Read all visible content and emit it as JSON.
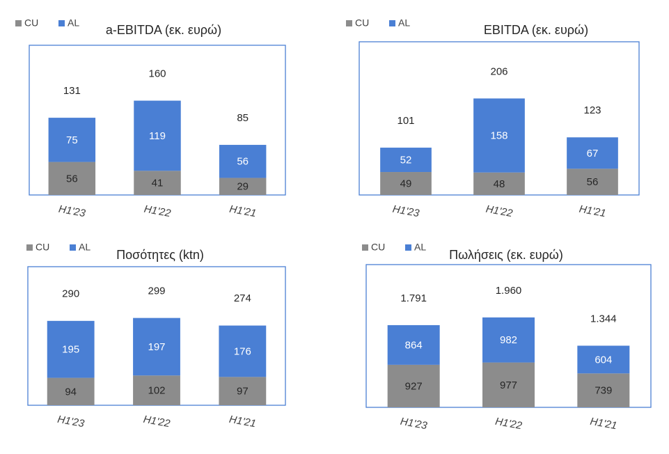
{
  "chart_data": [
    {
      "type": "bar",
      "title": "a-EBITDA (εκ. ευρώ)",
      "categories": [
        "H1'23",
        "H1'22",
        "H1'21"
      ],
      "series": [
        {
          "name": "CU",
          "color": "#8c8c8c",
          "values": [
            56,
            41,
            29
          ]
        },
        {
          "name": "AL",
          "color": "#4a7fd4",
          "values": [
            75,
            119,
            56
          ]
        }
      ],
      "totals": [
        131,
        160,
        85
      ]
    },
    {
      "type": "bar",
      "title": "EBITDA (εκ. ευρώ)",
      "categories": [
        "H1'23",
        "H1'22",
        "H1'21"
      ],
      "series": [
        {
          "name": "CU",
          "color": "#8c8c8c",
          "values": [
            49,
            48,
            56
          ]
        },
        {
          "name": "AL",
          "color": "#4a7fd4",
          "values": [
            52,
            158,
            67
          ]
        }
      ],
      "totals": [
        101,
        206,
        123
      ]
    },
    {
      "type": "bar",
      "title": "Ποσότητες (ktn)",
      "categories": [
        "H1'23",
        "H1'22",
        "H1'21"
      ],
      "series": [
        {
          "name": "CU",
          "color": "#8c8c8c",
          "values": [
            94,
            102,
            97
          ]
        },
        {
          "name": "AL",
          "color": "#4a7fd4",
          "values": [
            195,
            197,
            176
          ]
        }
      ],
      "totals": [
        290,
        299,
        274
      ]
    },
    {
      "type": "bar",
      "title": "Πωλήσεις (εκ. ευρώ)",
      "categories": [
        "H1'23",
        "H1'22",
        "H1'21"
      ],
      "series": [
        {
          "name": "CU",
          "color": "#8c8c8c",
          "values": [
            927,
            977,
            739
          ]
        },
        {
          "name": "AL",
          "color": "#4a7fd4",
          "values": [
            864,
            982,
            604
          ]
        }
      ],
      "totals": [
        1791,
        1960,
        1344
      ],
      "total_labels": [
        "1.791",
        "1.960",
        "1.344"
      ]
    }
  ]
}
